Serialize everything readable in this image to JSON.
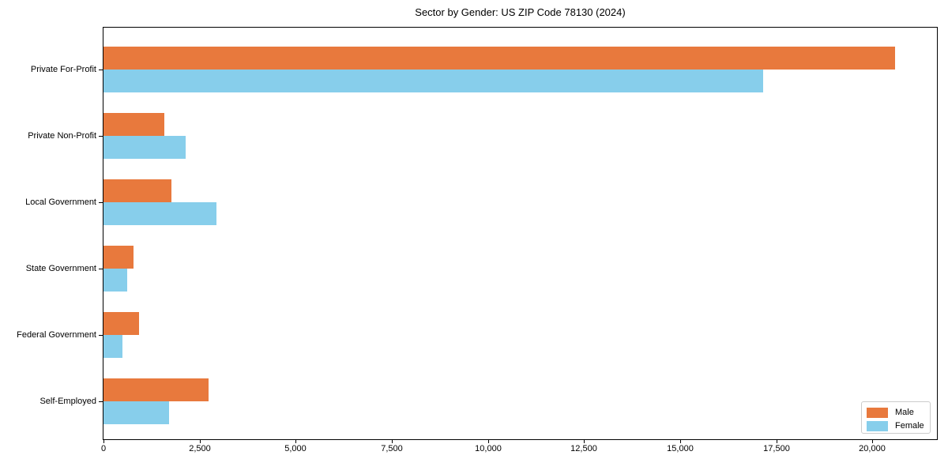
{
  "page": {
    "background": "#ffffff"
  },
  "chart_data": {
    "type": "bar",
    "orientation": "horizontal",
    "title": "Sector by Gender: US ZIP Code 78130 (2024)",
    "xlabel": "",
    "ylabel": "",
    "categories": [
      "Private For-Profit",
      "Private Non-Profit",
      "Local Government",
      "State Government",
      "Federal Government",
      "Self-Employed"
    ],
    "series": [
      {
        "name": "Male",
        "color": "#e8793d",
        "values": [
          20600,
          1580,
          1760,
          780,
          920,
          2730
        ]
      },
      {
        "name": "Female",
        "color": "#87ceeb",
        "values": [
          17150,
          2130,
          2930,
          620,
          490,
          1700
        ]
      }
    ],
    "xlim": [
      0,
      21680
    ],
    "xticks": {
      "values": [
        0,
        2500,
        5000,
        7500,
        10000,
        12500,
        15000,
        17500,
        20000
      ],
      "labels": [
        "0",
        "2,500",
        "5,000",
        "7,500",
        "10,000",
        "12,500",
        "15,000",
        "17,500",
        "20,000"
      ]
    },
    "legend": {
      "position": "lower right",
      "items": [
        "Male",
        "Female"
      ]
    },
    "grid": false
  }
}
